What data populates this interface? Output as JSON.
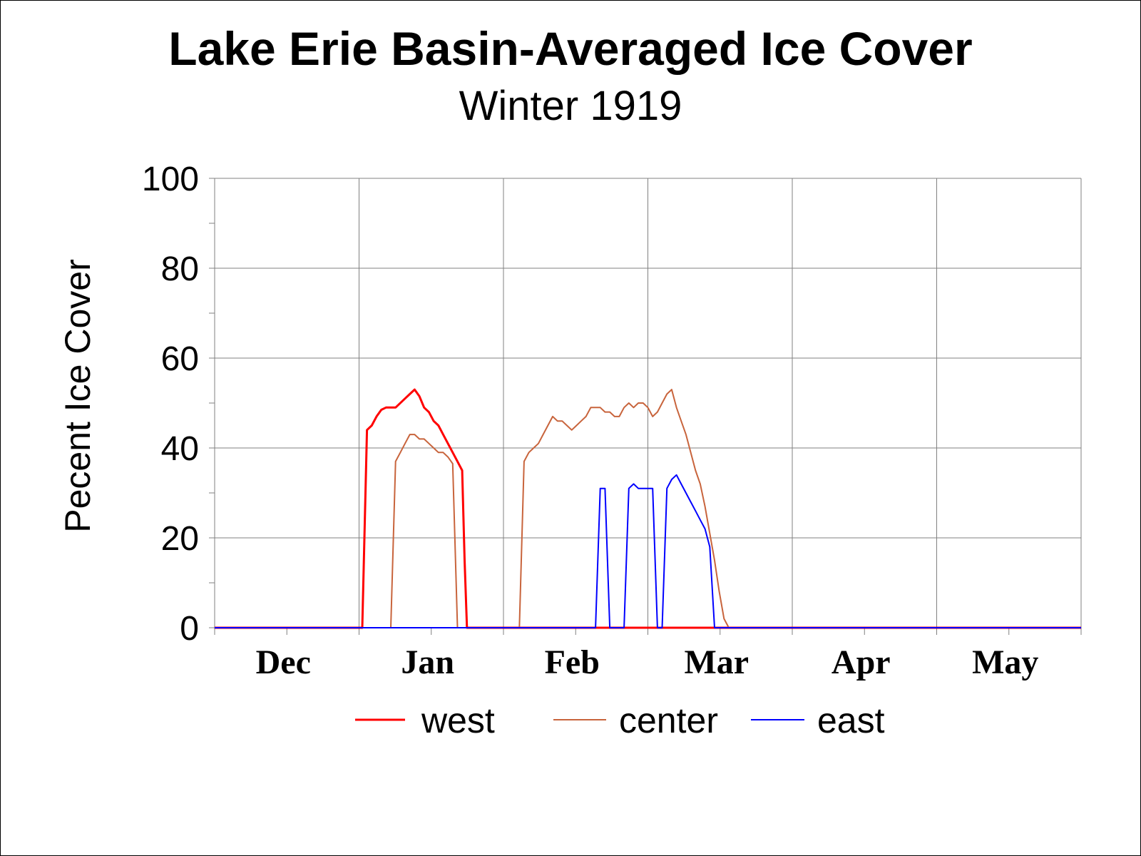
{
  "chart_data": {
    "type": "line",
    "title": "Lake Erie Basin-Averaged Ice Cover",
    "subtitle": "Winter 1919",
    "xlabel": "",
    "ylabel": "Pecent Ice Cover",
    "ylim": [
      0,
      100
    ],
    "yticks": [
      "0",
      "20",
      "40",
      "60",
      "80",
      "100"
    ],
    "x_domain_days": [
      0,
      182
    ],
    "x_axis_note": "days from Nov 16, 1918; month labels centered under each month",
    "month_labels": [
      "Dec",
      "Jan",
      "Feb",
      "Mar",
      "Apr",
      "May"
    ],
    "grid": true,
    "legend_position": "bottom",
    "series": [
      {
        "name": "west",
        "color": "#ff0000",
        "width": 3,
        "points": [
          [
            0,
            0
          ],
          [
            31,
            0
          ],
          [
            32,
            44
          ],
          [
            33,
            45
          ],
          [
            34,
            47
          ],
          [
            35,
            48.5
          ],
          [
            36,
            49
          ],
          [
            38,
            49
          ],
          [
            40,
            51
          ],
          [
            41,
            52
          ],
          [
            42,
            53
          ],
          [
            43,
            51.5
          ],
          [
            44,
            49
          ],
          [
            45,
            48
          ],
          [
            46,
            46
          ],
          [
            47,
            45
          ],
          [
            48,
            43
          ],
          [
            49,
            41
          ],
          [
            50,
            39
          ],
          [
            51,
            37
          ],
          [
            52,
            35
          ],
          [
            52.5,
            15
          ],
          [
            53,
            0
          ],
          [
            182,
            0
          ]
        ]
      },
      {
        "name": "center",
        "color": "#c8643c",
        "width": 2,
        "points": [
          [
            0,
            0
          ],
          [
            37,
            0
          ],
          [
            38,
            37
          ],
          [
            39,
            39
          ],
          [
            40,
            41
          ],
          [
            41,
            43
          ],
          [
            42,
            43
          ],
          [
            43,
            42
          ],
          [
            44,
            42
          ],
          [
            45,
            41
          ],
          [
            46,
            40
          ],
          [
            47,
            39
          ],
          [
            48,
            39
          ],
          [
            49,
            38
          ],
          [
            50,
            36.5
          ],
          [
            51,
            0
          ],
          [
            64,
            0
          ],
          [
            65,
            37
          ],
          [
            66,
            39
          ],
          [
            67,
            40
          ],
          [
            68,
            41
          ],
          [
            69,
            43
          ],
          [
            70,
            45
          ],
          [
            71,
            47
          ],
          [
            72,
            46
          ],
          [
            73,
            46
          ],
          [
            74,
            45
          ],
          [
            75,
            44
          ],
          [
            76,
            45
          ],
          [
            77,
            46
          ],
          [
            78,
            47
          ],
          [
            79,
            49
          ],
          [
            80,
            49
          ],
          [
            81,
            49
          ],
          [
            82,
            48
          ],
          [
            83,
            48
          ],
          [
            84,
            47
          ],
          [
            85,
            47
          ],
          [
            86,
            49
          ],
          [
            87,
            50
          ],
          [
            88,
            49
          ],
          [
            89,
            50
          ],
          [
            90,
            50
          ],
          [
            91,
            49
          ],
          [
            92,
            47
          ],
          [
            93,
            48
          ],
          [
            94,
            50
          ],
          [
            95,
            52
          ],
          [
            96,
            53
          ],
          [
            97,
            49
          ],
          [
            98,
            46
          ],
          [
            99,
            43
          ],
          [
            100,
            39
          ],
          [
            101,
            35
          ],
          [
            102,
            32
          ],
          [
            103,
            27
          ],
          [
            104,
            21
          ],
          [
            105,
            15
          ],
          [
            106,
            8
          ],
          [
            107,
            2
          ],
          [
            108,
            0
          ],
          [
            182,
            0
          ]
        ]
      },
      {
        "name": "east",
        "color": "#0000ff",
        "width": 2,
        "points": [
          [
            0,
            0
          ],
          [
            80,
            0
          ],
          [
            81,
            31
          ],
          [
            82,
            31
          ],
          [
            83,
            0
          ],
          [
            86,
            0
          ],
          [
            87,
            31
          ],
          [
            88,
            32
          ],
          [
            89,
            31
          ],
          [
            90,
            31
          ],
          [
            91,
            31
          ],
          [
            92,
            31
          ],
          [
            93,
            0
          ],
          [
            94,
            0
          ],
          [
            95,
            31
          ],
          [
            96,
            33
          ],
          [
            97,
            34
          ],
          [
            98,
            32
          ],
          [
            99,
            30
          ],
          [
            100,
            28
          ],
          [
            101,
            26
          ],
          [
            102,
            24
          ],
          [
            103,
            22
          ],
          [
            104,
            18
          ],
          [
            105,
            0
          ],
          [
            182,
            0
          ]
        ]
      }
    ]
  }
}
